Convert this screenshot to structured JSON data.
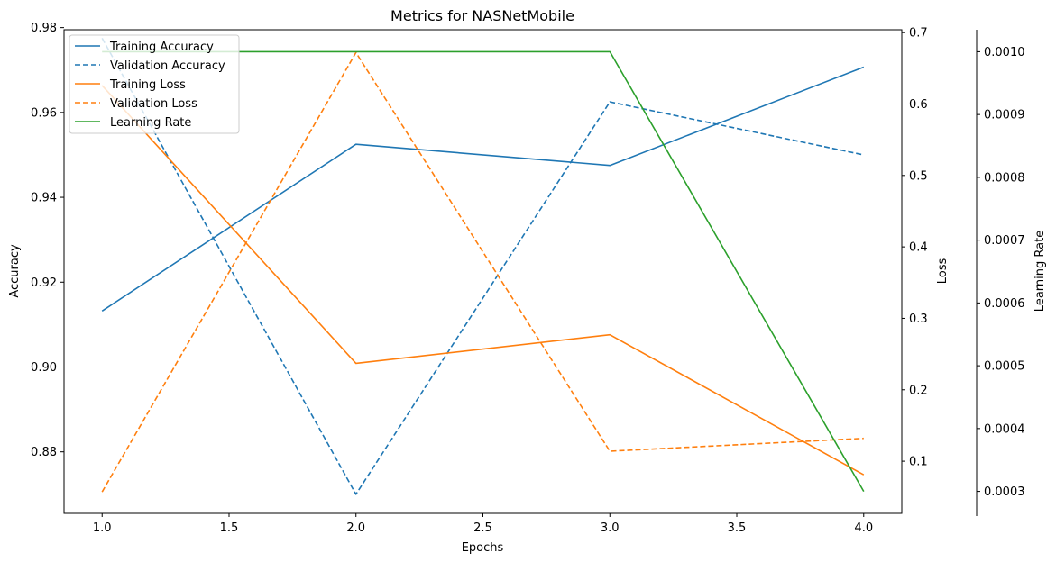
{
  "chart_data": {
    "type": "line",
    "title": "Metrics for NASNetMobile",
    "xlabel": "Epochs",
    "x": [
      1,
      2,
      3,
      4
    ],
    "xlim": [
      0.85,
      4.15
    ],
    "xticks": [
      "1.0",
      "1.5",
      "2.0",
      "2.5",
      "3.0",
      "3.5",
      "4.0"
    ],
    "axes": {
      "accuracy": {
        "label": "Accuracy",
        "side": "left",
        "ylim": [
          0.8655,
          0.9795
        ],
        "ticks": [
          "0.88",
          "0.90",
          "0.92",
          "0.94",
          "0.96",
          "0.98"
        ]
      },
      "loss": {
        "label": "Loss",
        "side": "right",
        "ylim": [
          0.027,
          0.704
        ],
        "ticks": [
          "0.1",
          "0.2",
          "0.3",
          "0.4",
          "0.5",
          "0.6",
          "0.7"
        ]
      },
      "lr": {
        "label": "Learning Rate",
        "side": "right-outer",
        "ylim": [
          0.000265,
          0.001035
        ],
        "ticks": [
          "0.0003",
          "0.0004",
          "0.0005",
          "0.0006",
          "0.0007",
          "0.0008",
          "0.0009",
          "0.0010"
        ]
      }
    },
    "series": [
      {
        "name": "Training Accuracy",
        "axis": "accuracy",
        "style": "solid",
        "color": "#1f77b4",
        "values": [
          0.9132,
          0.9525,
          0.9475,
          0.9707
        ]
      },
      {
        "name": "Validation Accuracy",
        "axis": "accuracy",
        "style": "dashed",
        "color": "#1f77b4",
        "values": [
          0.9775,
          0.87,
          0.9625,
          0.95
        ]
      },
      {
        "name": "Training Loss",
        "axis": "loss",
        "style": "solid",
        "color": "#ff7f0e",
        "values": [
          0.626,
          0.237,
          0.277,
          0.081
        ]
      },
      {
        "name": "Validation Loss",
        "axis": "loss",
        "style": "dashed",
        "color": "#ff7f0e",
        "values": [
          0.057,
          0.672,
          0.114,
          0.132
        ]
      },
      {
        "name": "Learning Rate",
        "axis": "lr",
        "style": "solid",
        "color": "#2ca02c",
        "values": [
          0.001,
          0.001,
          0.001,
          0.0003
        ]
      }
    ],
    "legend": "upper-left",
    "grid": false
  }
}
